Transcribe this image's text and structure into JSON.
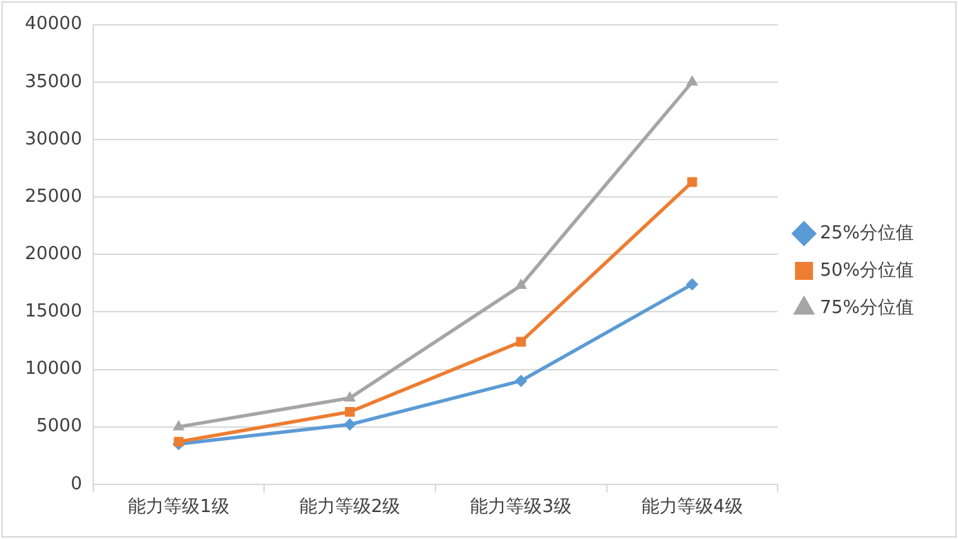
{
  "chart_data": {
    "type": "line",
    "categories": [
      "能力等级1级",
      "能力等级2级",
      "能力等级3级",
      "能力等级4级"
    ],
    "series": [
      {
        "name": "25%分位值",
        "color": "#5b9bd5",
        "marker": "diamond",
        "values": [
          3500,
          5200,
          9000,
          17400
        ]
      },
      {
        "name": "50%分位值",
        "color": "#ed7d31",
        "marker": "square",
        "values": [
          3700,
          6300,
          12400,
          26300
        ]
      },
      {
        "name": "75%分位值",
        "color": "#a5a5a5",
        "marker": "triangle",
        "values": [
          5000,
          7500,
          17300,
          35000
        ]
      }
    ],
    "ylim": [
      0,
      40000
    ],
    "yticks": [
      0,
      5000,
      10000,
      15000,
      20000,
      25000,
      30000,
      35000,
      40000
    ],
    "grid": "y",
    "legend": "right",
    "line_style": "solid"
  }
}
